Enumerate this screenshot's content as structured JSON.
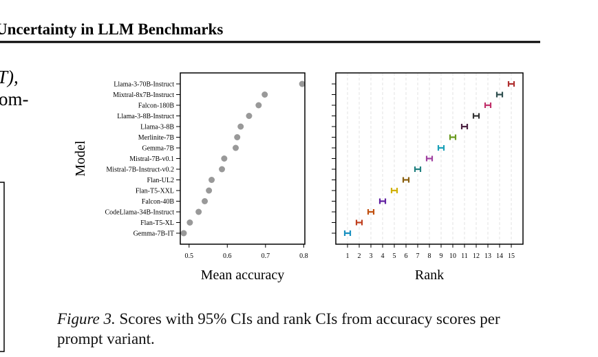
{
  "header": {
    "title": "Uncertainty in LLM Benchmarks"
  },
  "fragments": [
    "T),",
    "om-"
  ],
  "chart_data": [
    {
      "type": "scatter",
      "categories": [
        "Llama-3-70B-Instruct",
        "Mixtral-8x7B-Instruct",
        "Falcon-180B",
        "Llama-3-8B-Instruct",
        "Llama-3-8B",
        "Merlinite-7B",
        "Gemma-7B",
        "Mistral-7B-v0.1",
        "Mistral-7B-Instruct-v0.2",
        "Flan-UL2",
        "Flan-T5-XXL",
        "Falcon-40B",
        "CodeLlama-34B-Instruct",
        "Flan-T5-XL",
        "Gemma-7B-IT"
      ],
      "values": [
        0.796,
        0.698,
        0.682,
        0.657,
        0.635,
        0.626,
        0.622,
        0.592,
        0.586,
        0.559,
        0.552,
        0.541,
        0.525,
        0.502,
        0.486
      ],
      "color": "#999999",
      "xlim": [
        0.477,
        0.803
      ],
      "xticks": [
        0.5,
        0.6,
        0.7,
        0.8
      ],
      "xlabel": "Mean accuracy",
      "ylabel": "Model"
    },
    {
      "type": "rank-ci",
      "values": [
        15,
        14,
        13,
        12,
        11,
        10,
        9,
        8,
        7,
        6,
        5,
        4,
        3,
        2,
        1
      ],
      "colors": [
        "#b03030",
        "#2f4f4f",
        "#c0306a",
        "#333333",
        "#4a2040",
        "#6a9a20",
        "#1aa0b8",
        "#a040a0",
        "#208080",
        "#8a6010",
        "#d0b000",
        "#6020a0",
        "#c05010",
        "#c04020",
        "#1890c0"
      ],
      "xlim": [
        0,
        16
      ],
      "xticks": [
        1,
        2,
        3,
        4,
        5,
        6,
        7,
        8,
        9,
        10,
        11,
        12,
        13,
        14,
        15
      ],
      "xlabel": "Rank",
      "grid": true
    }
  ],
  "caption": {
    "label": "Figure 3.",
    "text": "Scores with 95% CIs and rank CIs from accuracy scores per prompt variant."
  }
}
